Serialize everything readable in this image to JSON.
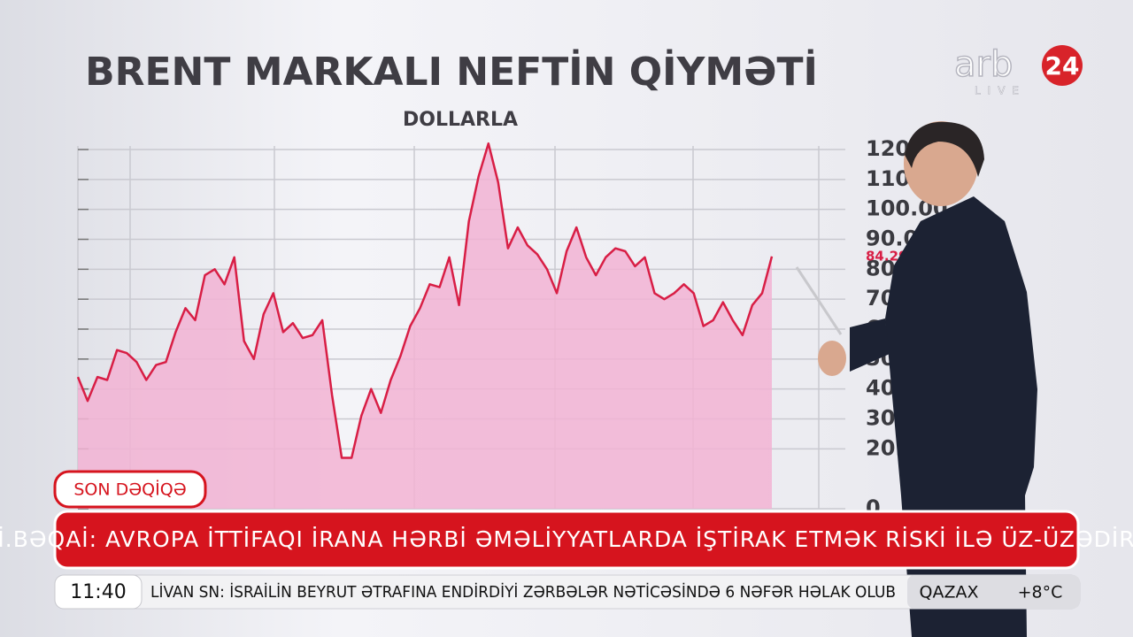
{
  "chart_data": {
    "type": "area",
    "title": "BRENT MARKALI NEFTİN QİYMƏTİ",
    "subtitle": "DOLLARLA",
    "categories": [
      null,
      null,
      null,
      null,
      null,
      null,
      null,
      null,
      null,
      null,
      null,
      null,
      null,
      null,
      null,
      null,
      null,
      null,
      null,
      null,
      null,
      null,
      null,
      null,
      null,
      null,
      null,
      null,
      null,
      null,
      null,
      null,
      null,
      null,
      null,
      null,
      null,
      null,
      null,
      null,
      null,
      null,
      null,
      null,
      null,
      null,
      null,
      null,
      null,
      null,
      null,
      null,
      null,
      null,
      null,
      null,
      null,
      null,
      null,
      null,
      null,
      null,
      null,
      null,
      null,
      null,
      null,
      null,
      null,
      null,
      null,
      null
    ],
    "values": [
      44,
      36,
      44,
      43,
      53,
      52,
      49,
      43,
      48,
      49,
      59,
      67,
      63,
      78,
      80,
      75,
      84,
      56,
      50,
      65,
      72,
      59,
      62,
      57,
      58,
      63,
      38,
      17,
      17,
      31,
      40,
      32,
      43,
      51,
      61,
      67,
      75,
      74,
      84,
      68,
      96,
      111,
      122,
      109,
      87,
      94,
      88,
      85,
      80,
      72,
      86,
      94,
      84,
      78,
      84,
      87,
      86,
      81,
      84,
      72,
      70,
      72,
      75,
      72,
      61,
      63,
      69,
      63,
      58,
      68,
      72,
      84.29
    ],
    "color": "#d81e45",
    "fill": "#f2b3d3",
    "ylim": [
      0,
      120
    ],
    "yticks": [
      0,
      {
        "value": 20,
        "label": "20.00"
      },
      {
        "value": 30,
        "label": "30.00"
      },
      {
        "value": 40,
        "label": "40.00"
      },
      {
        "value": 50,
        "label": "50.00"
      },
      {
        "value": 60,
        "label": "60.00"
      },
      {
        "value": 70,
        "label": "70.00"
      },
      {
        "value": 80,
        "label": "80.00"
      },
      {
        "value": 90,
        "label": "90.00"
      },
      {
        "value": 100,
        "label": "100.00"
      },
      {
        "value": 110,
        "label": "110.00"
      },
      {
        "value": 120,
        "label": "120.00"
      }
    ],
    "grid": true
  },
  "logo": {
    "name": "arb",
    "number": "24",
    "tag": "LIVE"
  },
  "ticker": {
    "badge": "SON DƏQİQƏ",
    "headline": "İ.BƏQAİ: AVROPA İTTİFAQI İRANA HƏRBİ ƏMƏLİYYATLARDA İŞTİRAK ETMƏK RİSKİ İLƏ ÜZ-ÜZƏDİR",
    "time": "11:40",
    "crawl": "LİVAN SN: İSRAİLİN BEYRUT ƏTRAFINA ENDİRDİYİ ZƏRBƏLƏR NƏTİCƏSİNDƏ 6 NƏFƏR HƏLAK OLUB",
    "city": "QAZAX",
    "temperature": "+8°C"
  }
}
